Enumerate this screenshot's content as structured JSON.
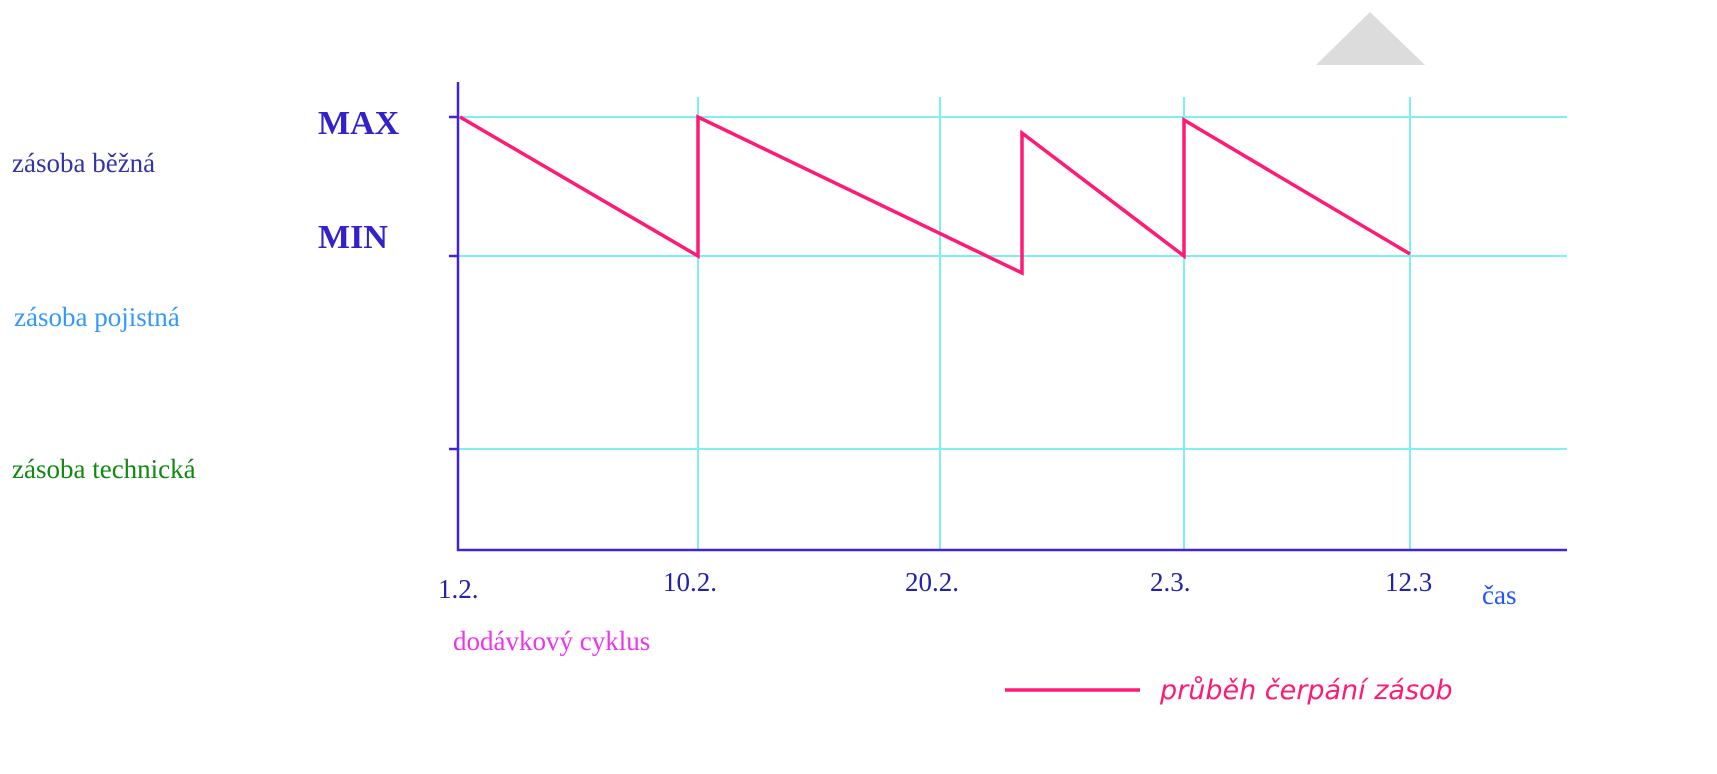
{
  "levels": {
    "max": "MAX",
    "min": "MIN"
  },
  "zones": [
    "zásoba běžná",
    "zásoba pojistná",
    "zásoba technická"
  ],
  "x_labels": [
    "1.2.",
    "10.2.",
    "20.2.",
    "2.3.",
    "12.3"
  ],
  "x_axis_label": "čas",
  "cycle_label": "dodávkový cyklus",
  "legend": "průběh čerpání zásob"
}
